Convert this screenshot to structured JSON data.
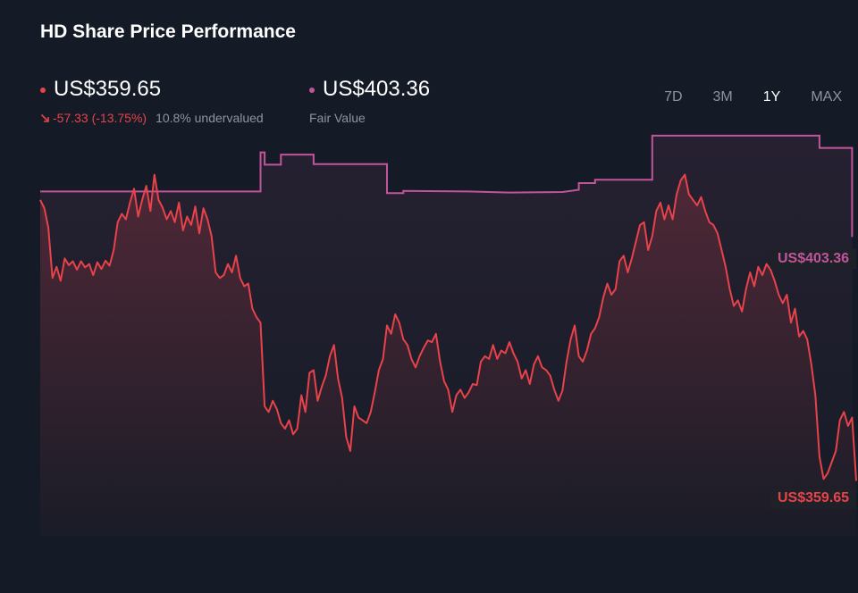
{
  "header": {
    "title": "HD Share Price Performance"
  },
  "current": {
    "price": "US$359.65",
    "change": "-57.33 (-13.75%)",
    "valuation": "10.8% undervalued",
    "color": "#e8424a"
  },
  "fair_value": {
    "price": "US$403.36",
    "label": "Fair Value",
    "color": "#c2559a"
  },
  "range_tabs": [
    {
      "label": "7D",
      "active": false
    },
    {
      "label": "3M",
      "active": false
    },
    {
      "label": "1Y",
      "active": true
    },
    {
      "label": "MAX",
      "active": false
    }
  ],
  "end_labels": {
    "fair_value": "US$403.36",
    "share_price": "US$359.65"
  },
  "chart_data": {
    "type": "line",
    "title": "HD Share Price Performance",
    "ylim": [
      345,
      425
    ],
    "x_points": 200,
    "grid": false,
    "legend": "none",
    "series": [
      {
        "name": "Fair Value",
        "color": "#c2559a",
        "points": [
          [
            0,
            411.5
          ],
          [
            54,
            411.5
          ],
          [
            54,
            418.5
          ],
          [
            55,
            418.5
          ],
          [
            55,
            416.3
          ],
          [
            59,
            416.3
          ],
          [
            59,
            418.1
          ],
          [
            67,
            418.1
          ],
          [
            67,
            416.4
          ],
          [
            85,
            416.4
          ],
          [
            85,
            411.2
          ],
          [
            89,
            411.2
          ],
          [
            89,
            411.6
          ],
          [
            105,
            411.5
          ],
          [
            115,
            411.3
          ],
          [
            128,
            411.4
          ],
          [
            132,
            411.8
          ],
          [
            132,
            413.0
          ],
          [
            136,
            413.0
          ],
          [
            136,
            413.6
          ],
          [
            150,
            413.6
          ],
          [
            150,
            421.5
          ],
          [
            191,
            421.5
          ],
          [
            191,
            419.3
          ],
          [
            199,
            419.3
          ],
          [
            199,
            403.36
          ]
        ]
      },
      {
        "name": "Share Price",
        "color": "#e8424a",
        "points": [
          [
            0,
            410.0
          ],
          [
            1,
            408.5
          ],
          [
            2,
            405.0
          ],
          [
            3,
            396.0
          ],
          [
            4,
            398.0
          ],
          [
            5,
            395.5
          ],
          [
            6,
            399.5
          ],
          [
            7,
            398.3
          ],
          [
            8,
            399.0
          ],
          [
            9,
            397.5
          ],
          [
            10,
            399.0
          ],
          [
            11,
            397.9
          ],
          [
            12,
            398.5
          ],
          [
            13,
            396.5
          ],
          [
            14,
            398.8
          ],
          [
            15,
            397.6
          ],
          [
            16,
            399.1
          ],
          [
            17,
            398.2
          ],
          [
            18,
            401.0
          ],
          [
            19,
            406.0
          ],
          [
            20,
            407.5
          ],
          [
            21,
            406.5
          ],
          [
            22,
            409.5
          ],
          [
            23,
            412.0
          ],
          [
            24,
            407.0
          ],
          [
            25,
            410.0
          ],
          [
            26,
            412.5
          ],
          [
            27,
            408.0
          ],
          [
            28,
            414.5
          ],
          [
            29,
            410.0
          ],
          [
            30,
            408.6
          ],
          [
            31,
            406.5
          ],
          [
            32,
            408.0
          ],
          [
            33,
            406.0
          ],
          [
            34,
            409.5
          ],
          [
            35,
            404.5
          ],
          [
            36,
            407.0
          ],
          [
            37,
            405.5
          ],
          [
            38,
            408.8
          ],
          [
            39,
            404.0
          ],
          [
            40,
            408.5
          ],
          [
            41,
            406.5
          ],
          [
            42,
            403.5
          ],
          [
            43,
            397.0
          ],
          [
            44,
            396.0
          ],
          [
            45,
            396.5
          ],
          [
            46,
            398.5
          ],
          [
            47,
            397.0
          ],
          [
            48,
            400.0
          ],
          [
            49,
            396.0
          ],
          [
            50,
            394.5
          ],
          [
            51,
            395.0
          ],
          [
            52,
            390.5
          ],
          [
            53,
            389.0
          ],
          [
            54,
            388.0
          ],
          [
            55,
            373.0
          ],
          [
            56,
            372.0
          ],
          [
            57,
            374.0
          ],
          [
            58,
            372.5
          ],
          [
            59,
            370.0
          ],
          [
            60,
            369.0
          ],
          [
            61,
            370.5
          ],
          [
            62,
            368.0
          ],
          [
            63,
            369.0
          ],
          [
            64,
            375.0
          ],
          [
            65,
            372.0
          ],
          [
            66,
            379.0
          ],
          [
            67,
            379.5
          ],
          [
            68,
            374.0
          ],
          [
            69,
            376.5
          ],
          [
            70,
            378.5
          ],
          [
            71,
            382.0
          ],
          [
            72,
            384.0
          ],
          [
            73,
            378.0
          ],
          [
            74,
            374.5
          ],
          [
            75,
            367.5
          ],
          [
            76,
            365.0
          ],
          [
            77,
            373.0
          ],
          [
            78,
            371.0
          ],
          [
            79,
            370.5
          ],
          [
            80,
            370.0
          ],
          [
            81,
            372.0
          ],
          [
            82,
            375.5
          ],
          [
            83,
            379.5
          ],
          [
            84,
            381.5
          ],
          [
            85,
            387.5
          ],
          [
            86,
            386.0
          ],
          [
            87,
            389.5
          ],
          [
            88,
            388.0
          ],
          [
            89,
            385.0
          ],
          [
            90,
            384.0
          ],
          [
            91,
            381.5
          ],
          [
            92,
            380.0
          ],
          [
            93,
            382.0
          ],
          [
            94,
            383.5
          ],
          [
            95,
            384.8
          ],
          [
            96,
            384.5
          ],
          [
            97,
            386.0
          ],
          [
            98,
            381.0
          ],
          [
            99,
            377.5
          ],
          [
            100,
            376.0
          ],
          [
            101,
            372.0
          ],
          [
            102,
            375.0
          ],
          [
            103,
            376.0
          ],
          [
            104,
            374.5
          ],
          [
            105,
            375.5
          ],
          [
            106,
            377.0
          ],
          [
            107,
            376.8
          ],
          [
            108,
            381.0
          ],
          [
            109,
            382.0
          ],
          [
            110,
            381.5
          ],
          [
            111,
            384.0
          ],
          [
            112,
            381.5
          ],
          [
            113,
            383.0
          ],
          [
            114,
            382.5
          ],
          [
            115,
            384.5
          ],
          [
            116,
            382.5
          ],
          [
            117,
            381.0
          ],
          [
            118,
            378.0
          ],
          [
            119,
            379.5
          ],
          [
            120,
            377.0
          ],
          [
            121,
            380.5
          ],
          [
            122,
            382.0
          ],
          [
            123,
            380.0
          ],
          [
            124,
            379.5
          ],
          [
            125,
            378.5
          ],
          [
            126,
            376.0
          ],
          [
            127,
            374.0
          ],
          [
            128,
            375.8
          ],
          [
            129,
            381.0
          ],
          [
            130,
            385.0
          ],
          [
            131,
            387.5
          ],
          [
            132,
            382.0
          ],
          [
            133,
            381.0
          ],
          [
            134,
            383.0
          ],
          [
            135,
            386.0
          ],
          [
            136,
            387.0
          ],
          [
            137,
            389.0
          ],
          [
            138,
            392.5
          ],
          [
            139,
            395.0
          ],
          [
            140,
            393.0
          ],
          [
            141,
            394.0
          ],
          [
            142,
            399.0
          ],
          [
            143,
            400.0
          ],
          [
            144,
            397.0
          ],
          [
            145,
            399.5
          ],
          [
            146,
            402.5
          ],
          [
            147,
            405.5
          ],
          [
            148,
            406.0
          ],
          [
            149,
            401.0
          ],
          [
            150,
            403.5
          ],
          [
            151,
            408.0
          ],
          [
            152,
            409.5
          ],
          [
            153,
            406.5
          ],
          [
            154,
            409.0
          ],
          [
            155,
            406.5
          ],
          [
            156,
            411.0
          ],
          [
            157,
            413.5
          ],
          [
            158,
            414.5
          ],
          [
            159,
            411.0
          ],
          [
            160,
            410.0
          ],
          [
            161,
            409.0
          ],
          [
            162,
            410.5
          ],
          [
            163,
            408.0
          ],
          [
            164,
            406.0
          ],
          [
            165,
            405.5
          ],
          [
            166,
            404.0
          ],
          [
            167,
            401.0
          ],
          [
            168,
            398.0
          ],
          [
            169,
            394.0
          ],
          [
            170,
            391.0
          ],
          [
            171,
            392.0
          ],
          [
            172,
            390.0
          ],
          [
            173,
            394.0
          ],
          [
            174,
            397.0
          ],
          [
            175,
            394.5
          ],
          [
            176,
            398.0
          ],
          [
            177,
            396.5
          ],
          [
            178,
            398.5
          ],
          [
            179,
            397.5
          ],
          [
            180,
            395.5
          ],
          [
            181,
            393.0
          ],
          [
            182,
            391.5
          ],
          [
            183,
            393.0
          ],
          [
            184,
            388.0
          ],
          [
            185,
            390.5
          ],
          [
            186,
            385.5
          ],
          [
            187,
            386.5
          ],
          [
            188,
            385.0
          ],
          [
            189,
            380.5
          ],
          [
            190,
            375.0
          ],
          [
            191,
            364.0
          ],
          [
            192,
            360.0
          ],
          [
            193,
            361.0
          ],
          [
            194,
            363.0
          ],
          [
            195,
            365.0
          ],
          [
            196,
            370.5
          ],
          [
            197,
            372.0
          ],
          [
            198,
            369.5
          ],
          [
            199,
            371.0
          ],
          [
            200,
            359.65
          ]
        ]
      }
    ]
  }
}
